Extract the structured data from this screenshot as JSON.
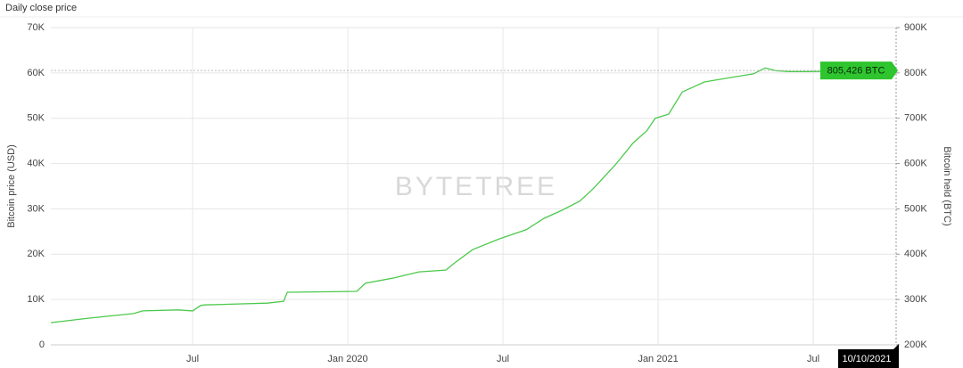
{
  "chart_data": {
    "type": "line",
    "title": "Daily close price",
    "watermark": "BYTETREE",
    "y_label": "Bitcoin price (USD)",
    "y2_label": "Bitcoin held (BTC)",
    "date_label": "10/10/2021",
    "xlim": [
      2019.043,
      2021.767
    ],
    "xticks": [
      {
        "value": 2019.5,
        "label": "Jul"
      },
      {
        "value": 2020.0,
        "label": "Jan 2020"
      },
      {
        "value": 2020.5,
        "label": "Jul"
      },
      {
        "value": 2021.0,
        "label": "Jan 2021"
      },
      {
        "value": 2021.5,
        "label": "Jul"
      }
    ],
    "ylim": [
      0,
      70000
    ],
    "yticks": [
      0,
      {
        "value": 10000,
        "label": "10K"
      },
      {
        "value": 20000,
        "label": "20K"
      },
      {
        "value": 30000,
        "label": "30K"
      },
      {
        "value": 40000,
        "label": "40K"
      },
      {
        "value": 50000,
        "label": "50K"
      },
      {
        "value": 60000,
        "label": "60K"
      },
      {
        "value": 70000,
        "label": "70K"
      }
    ],
    "y2lim": [
      200000,
      900000
    ],
    "y2ticks": [
      {
        "value": 200000,
        "label": "200K"
      },
      {
        "value": 300000,
        "label": "300K"
      },
      {
        "value": 400000,
        "label": "400K"
      },
      {
        "value": 500000,
        "label": "500K"
      },
      {
        "value": 600000,
        "label": "600K"
      },
      {
        "value": 700000,
        "label": "700K"
      },
      {
        "value": 800000,
        "label": "800K"
      },
      {
        "value": 900000,
        "label": "900K"
      }
    ],
    "grid": true,
    "series": [
      {
        "name": "Bitcoin held (BTC)",
        "axis": "y2",
        "color": "#4cc94c",
        "x": [
          2019.043,
          2019.167,
          2019.31,
          2019.339,
          2019.454,
          2019.5,
          2019.526,
          2019.54,
          2019.741,
          2019.793,
          2019.805,
          2020.029,
          2020.057,
          2020.144,
          2020.23,
          2020.316,
          2020.345,
          2020.402,
          2020.489,
          2020.575,
          2020.632,
          2020.69,
          2020.747,
          2020.79,
          2020.862,
          2020.92,
          2020.963,
          2020.991,
          2021.034,
          2021.078,
          2021.149,
          2021.236,
          2021.307,
          2021.345,
          2021.379,
          2021.422,
          2021.48,
          2021.767
        ],
        "values": [
          249000,
          259000,
          269000,
          275000,
          277000,
          275000,
          287000,
          288000,
          292000,
          296000,
          316000,
          318000,
          336000,
          347000,
          361000,
          365000,
          381000,
          410000,
          434000,
          454000,
          479000,
          497000,
          517000,
          544000,
          597000,
          646000,
          672000,
          700000,
          709000,
          758000,
          780000,
          790000,
          798000,
          811000,
          805000,
          803000,
          803000,
          805426
        ],
        "value_labels": {
          "37": "805,426 BTC"
        }
      }
    ]
  }
}
